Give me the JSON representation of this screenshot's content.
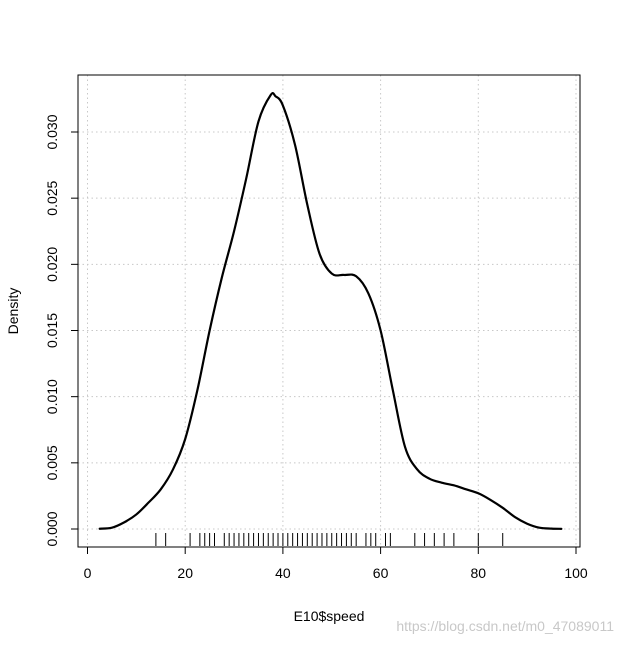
{
  "chart_data": {
    "type": "line",
    "title": "",
    "xlabel": "E10$speed",
    "ylabel": "Density",
    "xlim": [
      0,
      100
    ],
    "ylim": [
      0,
      0.033
    ],
    "x_ticks": [
      0,
      20,
      40,
      60,
      80,
      100
    ],
    "x_tick_labels": [
      "0",
      "20",
      "40",
      "60",
      "80",
      "100"
    ],
    "y_ticks": [
      0.0,
      0.005,
      0.01,
      0.015,
      0.02,
      0.025,
      0.03
    ],
    "y_tick_labels": [
      "0.000",
      "0.005",
      "0.010",
      "0.015",
      "0.020",
      "0.025",
      "0.030"
    ],
    "grid": true,
    "grid_style": "dotted",
    "line_color": "#000000",
    "series": [
      {
        "x": [
          2.5,
          5,
          7.5,
          10,
          12.5,
          15,
          17.5,
          20,
          22.5,
          25,
          27.5,
          30,
          32.5,
          35,
          37.5,
          38.5,
          40,
          42.5,
          45,
          47.5,
          50,
          52.5,
          55,
          57.5,
          60,
          62.5,
          65,
          67.5,
          70,
          72.5,
          75,
          77.5,
          80,
          82.5,
          85,
          87.5,
          90,
          92.5,
          95,
          97
        ],
        "y": [
          2e-05,
          0.0001,
          0.0005,
          0.0011,
          0.002,
          0.003,
          0.0045,
          0.0068,
          0.0105,
          0.015,
          0.019,
          0.0225,
          0.0265,
          0.0308,
          0.0328,
          0.0327,
          0.032,
          0.029,
          0.0245,
          0.0208,
          0.0193,
          0.0192,
          0.0191,
          0.0178,
          0.015,
          0.0105,
          0.0062,
          0.0045,
          0.0038,
          0.0035,
          0.0033,
          0.003,
          0.0027,
          0.0022,
          0.0016,
          0.0009,
          0.0004,
          0.0001,
          3e-05,
          1e-05
        ]
      }
    ],
    "rug": [
      14,
      16,
      21,
      23,
      24,
      25,
      26,
      28,
      29,
      30,
      31,
      32,
      33,
      34,
      35,
      36,
      37,
      38,
      39,
      40,
      41,
      42,
      43,
      44,
      45,
      46,
      47,
      48,
      49,
      50,
      51,
      52,
      53,
      54,
      55,
      57,
      58,
      59,
      61,
      62,
      67,
      69,
      71,
      73,
      75,
      80,
      85
    ]
  },
  "watermark": "https://blog.csdn.net/m0_47089011"
}
